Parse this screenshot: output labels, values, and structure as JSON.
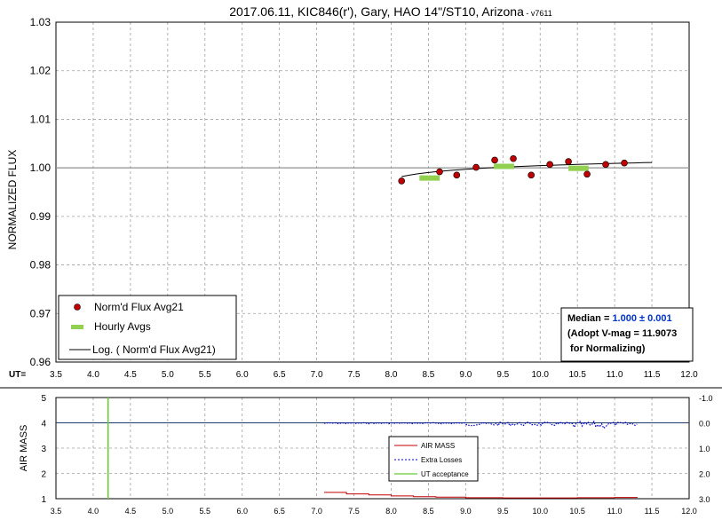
{
  "chart_data": [
    {
      "type": "scatter",
      "title": "2017.06.11, KIC846(r'), Gary, HAO 14\"/ST10, Arizona",
      "title_suffix": " - v7611",
      "ylabel": "NORMALIZED FLUX",
      "xlabel_prefix": "UT=",
      "xlim": [
        3.5,
        12.0
      ],
      "ylim": [
        0.96,
        1.03
      ],
      "xticks": [
        "3.5",
        "4.0",
        "4.5",
        "5.0",
        "5.5",
        "6.0",
        "6.5",
        "7.0",
        "7.5",
        "8.0",
        "8.5",
        "9.0",
        "9.5",
        "10.0",
        "10.5",
        "11.0",
        "11.5",
        "12.0"
      ],
      "yticks": [
        "0.96",
        "0.97",
        "0.98",
        "0.99",
        "1.00",
        "1.01",
        "1.02",
        "1.03"
      ],
      "grid": true,
      "reference_line": 1.0,
      "legend": {
        "placement": "bottom-left",
        "items": [
          "Norm'd Flux Avg21",
          "Hourly Avgs",
          "Log. ( Norm'd Flux Avg21)"
        ]
      },
      "series": [
        {
          "name": "Norm'd Flux Avg21",
          "color": "#c00000",
          "points": [
            [
              8.14,
              0.9973
            ],
            [
              8.65,
              0.9992
            ],
            [
              8.88,
              0.9985
            ],
            [
              9.14,
              1.0001
            ],
            [
              9.39,
              1.0016
            ],
            [
              9.64,
              1.0019
            ],
            [
              9.88,
              0.9985
            ],
            [
              10.13,
              1.0007
            ],
            [
              10.38,
              1.0013
            ],
            [
              10.63,
              0.9987
            ],
            [
              10.88,
              1.0007
            ],
            [
              11.13,
              1.001
            ]
          ]
        },
        {
          "name": "Hourly Avgs",
          "color": "#92d050",
          "segments": [
            [
              8.38,
              8.65,
              0.9979
            ],
            [
              9.38,
              9.65,
              1.0003
            ],
            [
              10.38,
              10.65,
              0.9999
            ]
          ]
        },
        {
          "name": "Log. ( Norm'd Flux Avg21)",
          "color": "#000000",
          "x": [
            8.14,
            11.5
          ],
          "trend": [
            0.9982,
            1.0011
          ]
        }
      ],
      "annotation": {
        "median_label": "Median = ",
        "median_value": "1.000 ± 0.001",
        "adopt_line": "(Adopt V-mag = 11.9073",
        "normalizing_line": " for Normalizing)",
        "median_color": "#0033cc"
      }
    },
    {
      "type": "line",
      "ylabel": "AIR MASS",
      "xlim": [
        3.5,
        12.0
      ],
      "ylim": [
        1,
        5
      ],
      "y2lim": [
        -1.0,
        3.0
      ],
      "xticks": [
        "3.5",
        "4.0",
        "4.5",
        "5.0",
        "5.5",
        "6.0",
        "6.5",
        "7.0",
        "7.5",
        "8.0",
        "8.5",
        "9.0",
        "9.5",
        "10.0",
        "10.5",
        "11.0",
        "11.5",
        "12.0"
      ],
      "yticks": [
        "1",
        "2",
        "3",
        "4",
        "5"
      ],
      "y2ticks": [
        "-1.0",
        "0.0",
        "1.0",
        "2.0",
        "3.0"
      ],
      "grid": true,
      "legend": {
        "placement": "center-right",
        "items": [
          "AIR MASS",
          "Extra Losses",
          "UT acceptance"
        ]
      },
      "series": [
        {
          "name": "AIR MASS",
          "color": "#c00000",
          "x": [
            7.1,
            7.4,
            7.7,
            8.0,
            8.3,
            8.6,
            9.0,
            9.5,
            10.0,
            10.5,
            11.0,
            11.3
          ],
          "values": [
            1.25,
            1.19,
            1.15,
            1.11,
            1.08,
            1.06,
            1.04,
            1.03,
            1.03,
            1.04,
            1.05,
            1.07
          ]
        },
        {
          "name": "Extra Losses",
          "color": "#0000cc",
          "x_range": [
            7.1,
            11.3
          ],
          "baseline": 0.0
        },
        {
          "name": "UT acceptance",
          "color": "#66cc33",
          "x": 4.2
        }
      ],
      "reference_line_y2": 0.0
    }
  ]
}
